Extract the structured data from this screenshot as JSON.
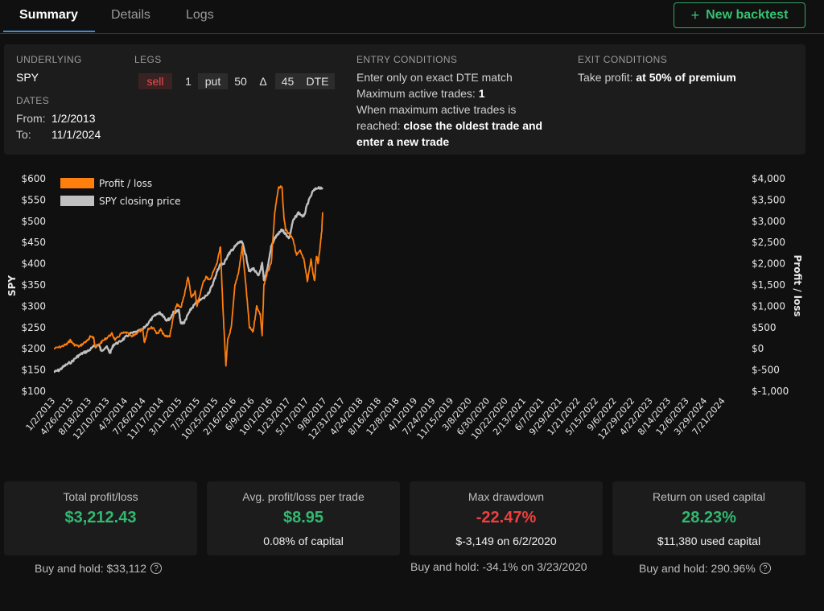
{
  "tabs": [
    {
      "label": "Summary",
      "active": true
    },
    {
      "label": "Details",
      "active": false
    },
    {
      "label": "Logs",
      "active": false
    }
  ],
  "new_backtest": {
    "icon": "plus-icon",
    "label": "New backtest"
  },
  "config": {
    "underlying_label": "UNDERLYING",
    "underlying_value": "SPY",
    "dates_label": "DATES",
    "from_label": "From:",
    "from_value": "1/2/2013",
    "to_label": "To:",
    "to_value": "11/1/2024",
    "legs_label": "LEGS",
    "leg": {
      "action": "sell",
      "quantity": "1",
      "type": "put",
      "strike": "50",
      "delta_symbol": "Δ",
      "dte": "45",
      "dte_label": "DTE"
    },
    "entry_label": "ENTRY CONDITIONS",
    "entry_line1": "Enter only on exact DTE match",
    "entry_line2_prefix": "Maximum active trades:",
    "entry_line2_value": "1",
    "entry_line3": "When maximum active trades is",
    "entry_line4_prefix": "reached:",
    "entry_line4_value": "close the oldest trade and",
    "entry_line5_value": "enter a new trade",
    "exit_label": "EXIT CONDITIONS",
    "exit_prefix": "Take profit:",
    "exit_value": "at 50% of premium"
  },
  "chart_data": {
    "type": "line",
    "legend": [
      "Profit / loss",
      "SPY closing price"
    ],
    "legend_position": "top-left",
    "colors": {
      "pnl": "#ff7f0e",
      "spy": "#c0c0c0"
    },
    "y_left": {
      "label": "SPY",
      "range": [
        100,
        600
      ],
      "ticks": [
        "$100",
        "$150",
        "$200",
        "$250",
        "$300",
        "$350",
        "$400",
        "$450",
        "$500",
        "$550",
        "$600"
      ]
    },
    "y_right": {
      "label": "Profit / loss",
      "range": [
        -1000,
        4000
      ],
      "ticks": [
        "$-1,000",
        "$-500",
        "$0",
        "$500",
        "$1,000",
        "$1,500",
        "$2,000",
        "$2,500",
        "$3,000",
        "$3,500",
        "$4,000"
      ]
    },
    "x_ticks": [
      "1/2/2013",
      "4/26/2013",
      "8/18/2013",
      "12/10/2013",
      "4/3/2014",
      "7/26/2014",
      "11/17/2014",
      "3/11/2015",
      "7/3/2015",
      "10/25/2015",
      "2/16/2016",
      "6/9/2016",
      "10/1/2016",
      "1/23/2017",
      "5/17/2017",
      "9/8/2017",
      "12/31/2017",
      "4/24/2018",
      "8/16/2018",
      "12/8/2018",
      "4/1/2019",
      "7/24/2019",
      "11/15/2019",
      "3/8/2020",
      "6/30/2020",
      "10/22/2020",
      "2/13/2021",
      "6/7/2021",
      "9/29/2021",
      "1/21/2022",
      "5/15/2022",
      "9/6/2022",
      "12/29/2022",
      "4/22/2023",
      "8/14/2023",
      "12/6/2023",
      "3/29/2024",
      "7/21/2024"
    ],
    "series": [
      {
        "name": "SPY closing price",
        "axis": "left",
        "points": [
          [
            0,
            145
          ],
          [
            0.3,
            150
          ],
          [
            0.6,
            160
          ],
          [
            1.0,
            170
          ],
          [
            1.3,
            182
          ],
          [
            1.6,
            190
          ],
          [
            1.9,
            195
          ],
          [
            2.2,
            205
          ],
          [
            2.5,
            210
          ],
          [
            2.6,
            195
          ],
          [
            2.9,
            205
          ],
          [
            3.1,
            190
          ],
          [
            3.3,
            210
          ],
          [
            3.6,
            215
          ],
          [
            3.9,
            225
          ],
          [
            4.2,
            235
          ],
          [
            4.6,
            240
          ],
          [
            4.9,
            245
          ],
          [
            5.2,
            260
          ],
          [
            5.5,
            275
          ],
          [
            5.8,
            285
          ],
          [
            6.0,
            280
          ],
          [
            6.2,
            268
          ],
          [
            6.4,
            270
          ],
          [
            6.6,
            285
          ],
          [
            6.9,
            290
          ],
          [
            7.0,
            260
          ],
          [
            7.2,
            262
          ],
          [
            7.4,
            280
          ],
          [
            7.6,
            295
          ],
          [
            7.9,
            310
          ],
          [
            8.3,
            320
          ],
          [
            8.6,
            335
          ],
          [
            8.8,
            355
          ],
          [
            9.0,
            380
          ],
          [
            9.2,
            400
          ],
          [
            9.4,
            400
          ],
          [
            9.6,
            420
          ],
          [
            9.8,
            430
          ],
          [
            10.0,
            440
          ],
          [
            10.2,
            450
          ],
          [
            10.4,
            450
          ],
          [
            10.6,
            420
          ],
          [
            10.8,
            380
          ],
          [
            11.0,
            390
          ],
          [
            11.3,
            370
          ],
          [
            11.5,
            400
          ],
          [
            11.6,
            360
          ],
          [
            11.8,
            390
          ],
          [
            12.0,
            440
          ],
          [
            12.2,
            460
          ],
          [
            12.4,
            470
          ],
          [
            12.6,
            480
          ],
          [
            12.8,
            470
          ],
          [
            13.0,
            460
          ],
          [
            13.2,
            500
          ],
          [
            13.5,
            520
          ],
          [
            13.8,
            510
          ],
          [
            14.0,
            540
          ],
          [
            14.3,
            570
          ],
          [
            14.6,
            580
          ],
          [
            14.84,
            575
          ]
        ]
      },
      {
        "name": "Profit / loss",
        "axis": "right",
        "points": [
          [
            0,
            0
          ],
          [
            0.4,
            50
          ],
          [
            0.7,
            100
          ],
          [
            0.9,
            200
          ],
          [
            1.1,
            100
          ],
          [
            1.4,
            50
          ],
          [
            1.7,
            150
          ],
          [
            1.9,
            200
          ],
          [
            2.0,
            300
          ],
          [
            2.2,
            250
          ],
          [
            2.3,
            20
          ],
          [
            2.6,
            150
          ],
          [
            2.9,
            250
          ],
          [
            3.2,
            350
          ],
          [
            3.4,
            200
          ],
          [
            3.7,
            350
          ],
          [
            4.0,
            380
          ],
          [
            4.3,
            280
          ],
          [
            4.6,
            380
          ],
          [
            4.9,
            450
          ],
          [
            5.0,
            150
          ],
          [
            5.1,
            300
          ],
          [
            5.2,
            480
          ],
          [
            5.5,
            500
          ],
          [
            5.7,
            350
          ],
          [
            5.9,
            450
          ],
          [
            6.1,
            300
          ],
          [
            6.4,
            300
          ],
          [
            6.6,
            750
          ],
          [
            6.8,
            1050
          ],
          [
            7.0,
            950
          ],
          [
            7.2,
            1250
          ],
          [
            7.4,
            1700
          ],
          [
            7.6,
            1200
          ],
          [
            7.8,
            1350
          ],
          [
            7.9,
            1000
          ],
          [
            8.2,
            1500
          ],
          [
            8.4,
            1700
          ],
          [
            8.6,
            1600
          ],
          [
            8.8,
            1800
          ],
          [
            9.0,
            2000
          ],
          [
            9.2,
            2400
          ],
          [
            9.3,
            1300
          ],
          [
            9.4,
            400
          ],
          [
            9.5,
            -400
          ],
          [
            9.6,
            200
          ],
          [
            9.8,
            500
          ],
          [
            10.0,
            1500
          ],
          [
            10.2,
            1800
          ],
          [
            10.4,
            2400
          ],
          [
            10.6,
            1500
          ],
          [
            10.8,
            500
          ],
          [
            11.0,
            400
          ],
          [
            11.2,
            1000
          ],
          [
            11.4,
            800
          ],
          [
            11.5,
            300
          ],
          [
            11.6,
            1500
          ],
          [
            11.8,
            1800
          ],
          [
            12.0,
            2000
          ],
          [
            12.2,
            3200
          ],
          [
            12.4,
            3800
          ],
          [
            12.6,
            3800
          ],
          [
            12.7,
            3100
          ],
          [
            12.8,
            2800
          ],
          [
            13.0,
            2700
          ],
          [
            13.2,
            2600
          ],
          [
            13.4,
            2200
          ],
          [
            13.6,
            2300
          ],
          [
            13.8,
            2100
          ],
          [
            14.0,
            1600
          ],
          [
            14.2,
            2100
          ],
          [
            14.3,
            1800
          ],
          [
            14.4,
            1600
          ],
          [
            14.5,
            2200
          ],
          [
            14.6,
            2000
          ],
          [
            14.7,
            2400
          ],
          [
            14.8,
            2800
          ],
          [
            14.84,
            3212
          ]
        ]
      }
    ]
  },
  "stats": [
    {
      "title": "Total profit/loss",
      "value": "$3,212.43",
      "tone": "green",
      "sub": ""
    },
    {
      "title": "Avg. profit/loss per trade",
      "value": "$8.95",
      "tone": "green",
      "sub": "0.08% of capital"
    },
    {
      "title": "Max drawdown",
      "value": "-22.47%",
      "tone": "red",
      "sub": "$-3,149 on 6/2/2020"
    },
    {
      "title": "Return on used capital",
      "value": "28.23%",
      "tone": "green",
      "sub": "$11,380 used capital"
    }
  ],
  "buy_and_hold": [
    "Buy and hold: $33,112",
    "Buy and hold: -34.1% on 3/23/2020",
    "Buy and hold: 290.96%"
  ]
}
